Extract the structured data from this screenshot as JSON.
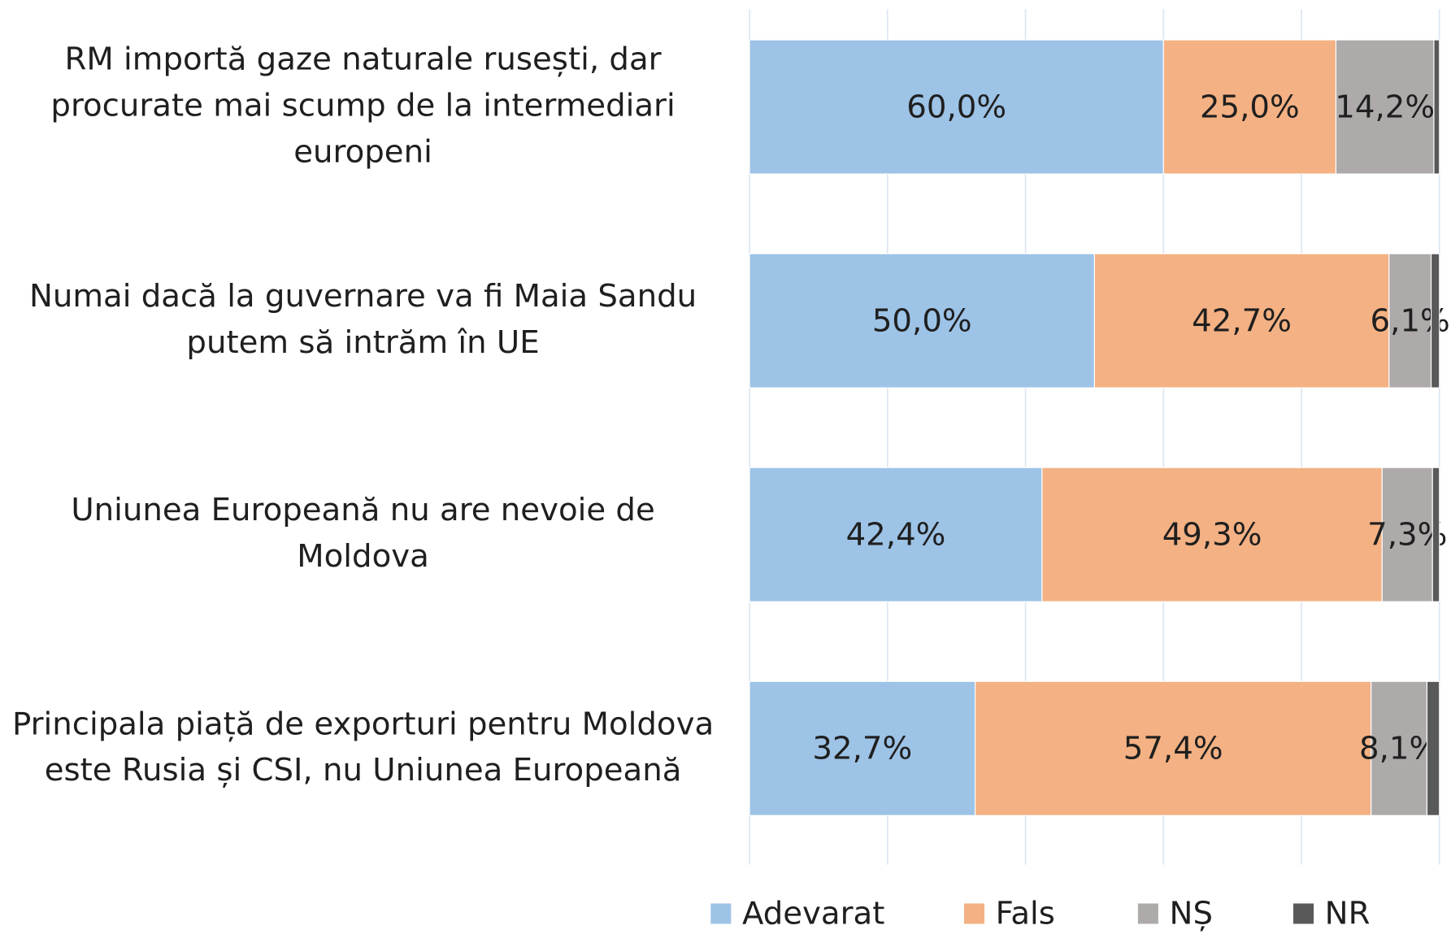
{
  "chart_data": {
    "type": "stacked-barh",
    "categories": [
      "RM importă gaze naturale rusești, dar procurate mai scump de la intermediari europeni",
      "Numai dacă la guvernare va fi Maia Sandu putem să intrăm în UE",
      "Uniunea Europeană nu are nevoie de Moldova",
      "Principala piață de exporturi pentru Moldova este Rusia și CSI, nu Uniunea Europeană"
    ],
    "series": [
      {
        "name": "Adevarat",
        "color": "#9dc3e6",
        "values": [
          60.0,
          50.0,
          42.4,
          32.7
        ],
        "value_labels": [
          "60,0%",
          "50,0%",
          "42,4%",
          "32,7%"
        ]
      },
      {
        "name": "Fals",
        "color": "#f4b183",
        "values": [
          25.0,
          42.7,
          49.3,
          57.4
        ],
        "value_labels": [
          "25,0%",
          "42,7%",
          "49,3%",
          "57,4%"
        ]
      },
      {
        "name": "NȘ",
        "color": "#aeaaaa",
        "values": [
          14.2,
          6.1,
          7.3,
          8.1
        ],
        "value_labels": [
          "14,2%",
          "6,1%",
          "7,3%",
          "8,1%"
        ]
      },
      {
        "name": "NR",
        "color": "#595959",
        "values": [
          0.8,
          1.2,
          1.0,
          1.8
        ]
      }
    ],
    "xlim": [
      0,
      100
    ],
    "xticks": [
      0,
      20,
      40,
      60,
      80,
      100
    ],
    "grid": true,
    "legend": "bottom"
  }
}
